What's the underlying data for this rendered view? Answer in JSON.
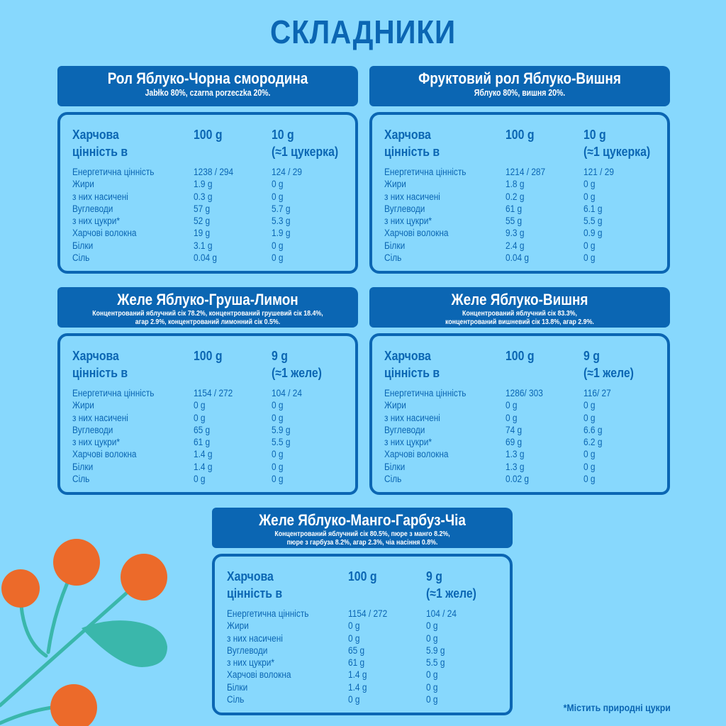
{
  "page": {
    "title": "СКЛАДНИКИ",
    "footnote": "*Містить природні цукри"
  },
  "colors": {
    "background": "#87d8fd",
    "primary_blue": "#0b66b3",
    "berry_orange": "#ec6a2a",
    "leaf_teal": "#3ab7ab"
  },
  "labels": {
    "nutrition_header_line1": "Харчова",
    "nutrition_header_line2": "цінність в",
    "col_100": "100 g",
    "rows": [
      "Енергетична цінність",
      "Жири",
      "з них насичені",
      "Вуглеводи",
      "з них цукри*",
      "Харчові волокна",
      "Білки",
      "Сіль"
    ]
  },
  "products": [
    {
      "name": "Рол Яблуко-Чорна смородина",
      "ingredients_line1": "Jabłko 80%, czarna porzeczka 20%.",
      "ingredients_line2": "",
      "portion_line1": "10 g",
      "portion_line2": "(≈1 цукерка)",
      "values_100": [
        "1238 / 294",
        "1.9 g",
        "0.3 g",
        "57 g",
        "52 g",
        "19 g",
        "3.1 g",
        "0.04 g"
      ],
      "values_portion": [
        "124 / 29",
        "0 g",
        "0 g",
        "5.7 g",
        "5.3 g",
        "1.9 g",
        "0 g",
        "0 g"
      ]
    },
    {
      "name": "Фруктовий рол Яблуко-Вишня",
      "ingredients_line1": "Яблуко 80%, вишня 20%.",
      "ingredients_line2": "",
      "portion_line1": "10 g",
      "portion_line2": "(≈1 цукерка)",
      "values_100": [
        "1214 / 287",
        "1.8 g",
        "0.2 g",
        "61 g",
        "55 g",
        "9.3 g",
        "2.4 g",
        "0.04 g"
      ],
      "values_portion": [
        "121 / 29",
        "0 g",
        "0 g",
        "6.1 g",
        "5.5 g",
        "0.9 g",
        "0 g",
        "0 g"
      ]
    },
    {
      "name": "Желе Яблуко-Груша-Лимон",
      "ingredients_line1": "Концентрований яблучний сік 78.2%, концентрований грушевий сік 18.4%,",
      "ingredients_line2": "агар 2.9%,  концентрований лимонний сік 0.5%.",
      "portion_line1": "9 g",
      "portion_line2": "(≈1 желе)",
      "values_100": [
        "1154 / 272",
        "0 g",
        "0 g",
        "65 g",
        "61 g",
        "1.4 g",
        "1.4 g",
        "0 g"
      ],
      "values_portion": [
        "104 / 24",
        "0 g",
        "0 g",
        "5.9 g",
        "5.5 g",
        "0 g",
        "0 g",
        "0 g"
      ]
    },
    {
      "name": "Желе Яблуко-Вишня",
      "ingredients_line1": "Концентрований яблучний сік 83.3%,",
      "ingredients_line2": "концентрований вишневий сік 13.8%, агар 2.9%.",
      "portion_line1": "9 g",
      "portion_line2": "(≈1 желе)",
      "values_100": [
        "1286/ 303",
        "0 g",
        "0 g",
        "74 g",
        "69 g",
        "1.3 g",
        "1.3 g",
        "0.02 g"
      ],
      "values_portion": [
        "116/ 27",
        "0 g",
        "0 g",
        "6.6 g",
        "6.2 g",
        "0 g",
        "0 g",
        "0 g"
      ]
    },
    {
      "name": "Желе Яблуко-Манго-Гарбуз-Чіа",
      "ingredients_line1": "Концентрований яблучний сік 80.5%, пюре з манго 8.2%,",
      "ingredients_line2": "пюре з гарбуза 8.2%, агар 2.3%, чіа насіння 0.8%.",
      "portion_line1": "9 g",
      "portion_line2": "(≈1 желе)",
      "values_100": [
        "1154 / 272",
        "0 g",
        "0 g",
        "65 g",
        "61 g",
        "1.4 g",
        "1.4 g",
        "0 g"
      ],
      "values_portion": [
        "104 / 24",
        "0 g",
        "0 g",
        "5.9 g",
        "5.5 g",
        "0 g",
        "0 g",
        "0 g"
      ]
    }
  ]
}
